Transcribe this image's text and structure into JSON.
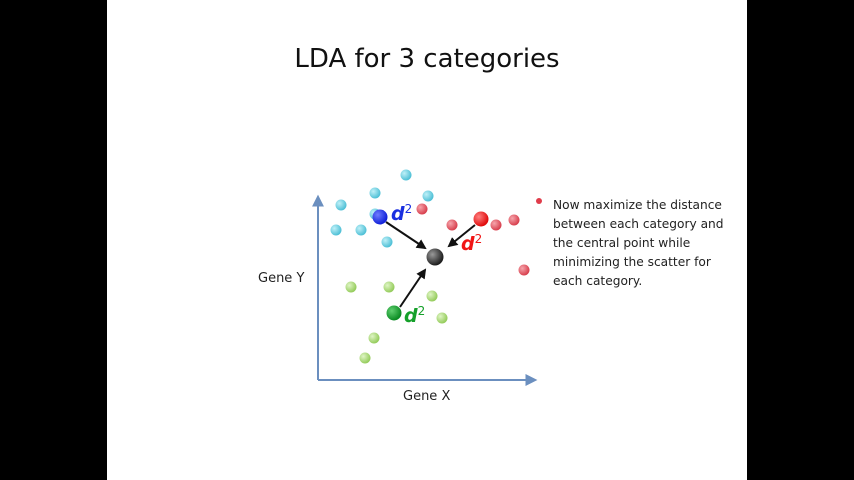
{
  "slide": {
    "title": "LDA for 3 categories",
    "x_axis_label": "Gene X",
    "y_axis_label": "Gene Y",
    "explanation_lines": [
      "Now maximize the distance",
      "between each category and",
      "the central point while",
      "minimizing the scatter for",
      "each category."
    ],
    "distance_label": "d",
    "distance_exponent": "2"
  },
  "colors": {
    "axis": "#6b8fbf",
    "cyan_points": "#5cc8dc",
    "red_points": "#e0505e",
    "green_points": "#9fd46a",
    "blue_centroid": "#1a2fe0",
    "red_centroid": "#f01515",
    "green_centroid": "#12a02a",
    "central_point": "#333333",
    "blue_label": "#1a2fe0",
    "red_label": "#f01515",
    "green_label": "#15a02a"
  }
}
